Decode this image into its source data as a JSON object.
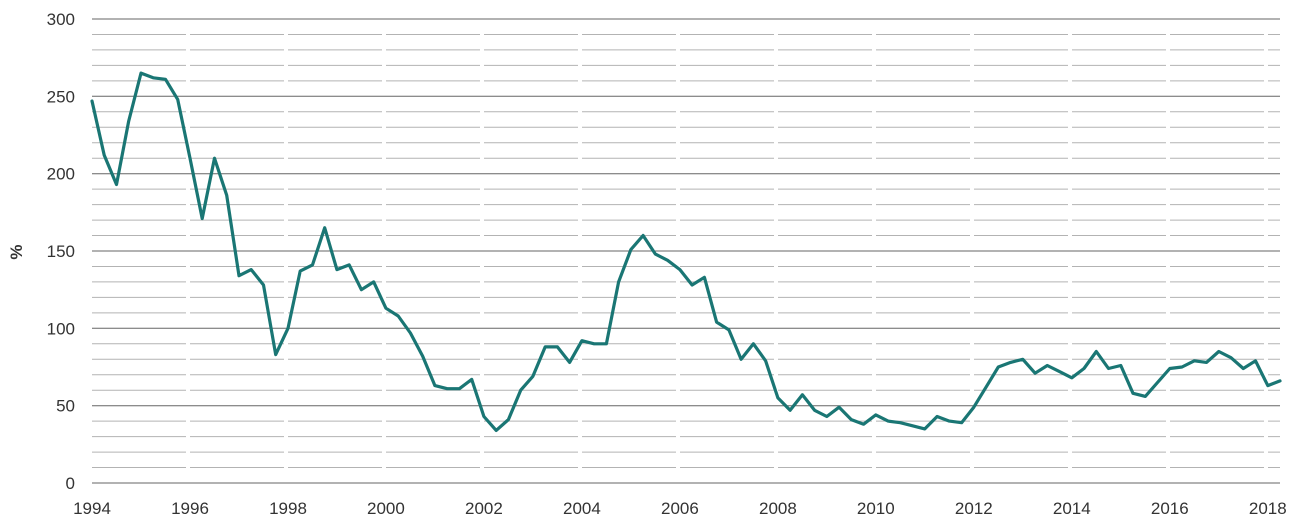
{
  "chart_data": {
    "type": "line",
    "title": "",
    "xlabel": "",
    "ylabel": "%",
    "xlim": [
      1994,
      2018.25
    ],
    "ylim": [
      0,
      300
    ],
    "y_major_ticks": [
      0,
      50,
      100,
      150,
      200,
      250,
      300
    ],
    "y_minor_step": 10,
    "x_ticks": [
      1994,
      1996,
      1998,
      2000,
      2002,
      2004,
      2006,
      2008,
      2010,
      2012,
      2014,
      2016,
      2018
    ],
    "x_tick_labels": [
      "1994",
      "1996",
      "1998",
      "2000",
      "2002",
      "2004",
      "2006",
      "2008",
      "2010",
      "2012",
      "2014",
      "2016",
      "2018"
    ],
    "y_tick_labels": [
      "0",
      "50",
      "100",
      "150",
      "200",
      "250",
      "300"
    ],
    "grid": true,
    "legend": "none",
    "colors": {
      "line": "#1a7674",
      "major_grid": "#666666",
      "minor_grid": "#b3b3b3",
      "text": "#333333"
    },
    "series": [
      {
        "x": [
          1994.0,
          1994.25,
          1994.5,
          1994.75,
          1995.0,
          1995.25,
          1995.5,
          1995.75,
          1996.0,
          1996.25,
          1996.5,
          1996.75,
          1997.0,
          1997.25,
          1997.5,
          1997.75,
          1998.0,
          1998.25,
          1998.5,
          1998.75,
          1999.0,
          1999.25,
          1999.5,
          1999.75,
          2000.0,
          2000.25,
          2000.5,
          2000.75,
          2001.0,
          2001.25,
          2001.5,
          2001.75,
          2002.0,
          2002.25,
          2002.5,
          2002.75,
          2003.0,
          2003.25,
          2003.5,
          2003.75,
          2004.0,
          2004.25,
          2004.5,
          2004.75,
          2005.0,
          2005.25,
          2005.5,
          2005.75,
          2006.0,
          2006.25,
          2006.5,
          2006.75,
          2007.0,
          2007.25,
          2007.5,
          2007.75,
          2008.0,
          2008.25,
          2008.5,
          2008.75,
          2009.0,
          2009.25,
          2009.5,
          2009.75,
          2010.0,
          2010.25,
          2010.5,
          2010.75,
          2011.0,
          2011.25,
          2011.5,
          2011.75,
          2012.0,
          2012.25,
          2012.5,
          2012.75,
          2013.0,
          2013.25,
          2013.5,
          2013.75,
          2014.0,
          2014.25,
          2014.5,
          2014.75,
          2015.0,
          2015.25,
          2015.5,
          2015.75,
          2016.0,
          2016.25,
          2016.5,
          2016.75,
          2017.0,
          2017.25,
          2017.5,
          2017.75,
          2018.0,
          2018.25
        ],
        "y": [
          247,
          212,
          193,
          234,
          265,
          262,
          261,
          248,
          210,
          171,
          210,
          186,
          134,
          138,
          128,
          83,
          100,
          137,
          141,
          165,
          138,
          141,
          125,
          130,
          113,
          108,
          97,
          82,
          63,
          61,
          61,
          67,
          43,
          34,
          41,
          60,
          69,
          88,
          88,
          78,
          92,
          90,
          90,
          130,
          151,
          160,
          148,
          144,
          138,
          128,
          133,
          104,
          99,
          80,
          90,
          79,
          55,
          47,
          57,
          47,
          43,
          49,
          41,
          38,
          44,
          40,
          39,
          37,
          35,
          43,
          40,
          39,
          49,
          62,
          75,
          78,
          80,
          71,
          76,
          72,
          68,
          74,
          85,
          74,
          76,
          58,
          56,
          65,
          74,
          75,
          79,
          78,
          85,
          81,
          74,
          79,
          63,
          66
        ]
      }
    ]
  }
}
